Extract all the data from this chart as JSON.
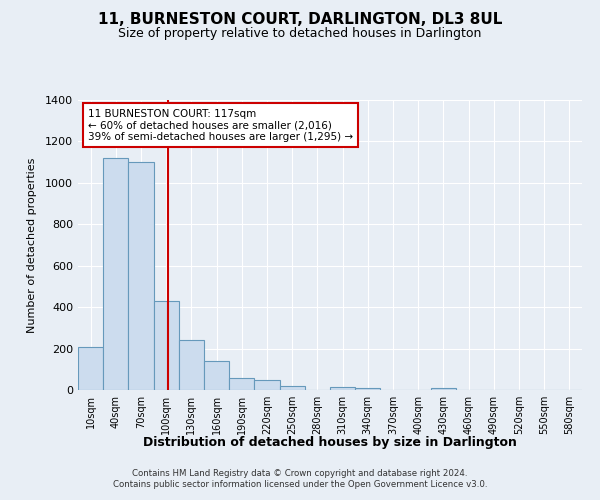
{
  "title": "11, BURNESTON COURT, DARLINGTON, DL3 8UL",
  "subtitle": "Size of property relative to detached houses in Darlington",
  "xlabel": "Distribution of detached houses by size in Darlington",
  "ylabel": "Number of detached properties",
  "bar_color": "#ccdcee",
  "bar_edge_color": "#6699bb",
  "background_color": "#e8eef5",
  "plot_bg_color": "#e8eef5",
  "grid_color": "#ffffff",
  "annotation_box_color": "#ffffff",
  "annotation_border_color": "#cc0000",
  "property_line_color": "#cc0000",
  "property_value": 117,
  "annotation_title": "11 BURNESTON COURT: 117sqm",
  "annotation_line1": "← 60% of detached houses are smaller (2,016)",
  "annotation_line2": "39% of semi-detached houses are larger (1,295) →",
  "bins": [
    10,
    40,
    70,
    100,
    130,
    160,
    190,
    220,
    250,
    280,
    310,
    340,
    370,
    400,
    430,
    460,
    490,
    520,
    550,
    580,
    610
  ],
  "counts": [
    210,
    1120,
    1100,
    430,
    240,
    140,
    60,
    47,
    20,
    0,
    15,
    10,
    0,
    0,
    10,
    0,
    0,
    0,
    0,
    0
  ],
  "ylim": [
    0,
    1400
  ],
  "yticks": [
    0,
    200,
    400,
    600,
    800,
    1000,
    1200,
    1400
  ],
  "footer1": "Contains HM Land Registry data © Crown copyright and database right 2024.",
  "footer2": "Contains public sector information licensed under the Open Government Licence v3.0."
}
